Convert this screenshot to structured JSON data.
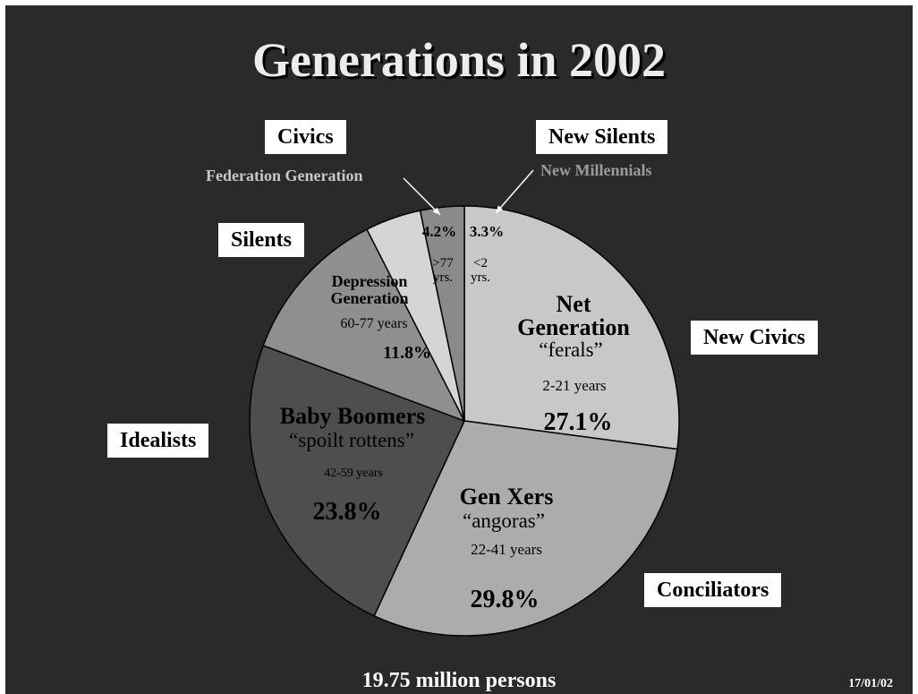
{
  "title": "Generations in 2002",
  "footer": "19.75 million persons",
  "date": "17/01/02",
  "labels": {
    "civics": "Civics",
    "federation_generation": "Federation Generation",
    "new_silents": "New Silents",
    "new_millennials": "New Millennials",
    "silents": "Silents",
    "new_civics": "New Civics",
    "idealists": "Idealists",
    "conciliators": "Conciliators"
  },
  "colors": {
    "background": "#2a2a2a",
    "slice_net_generation": "#c8c8c8",
    "slice_gen_xers": "#acacac",
    "slice_baby_boomers": "#4e4e4e",
    "slice_depression": "#8f8f8f",
    "slice_federation": "#d5d5d5",
    "slice_new_millennials": "#8a8a8a"
  },
  "chart_data": {
    "type": "pie",
    "title": "Generations in 2002",
    "slices": [
      {
        "name": "Net Generation",
        "nickname": "“ferals”",
        "ages": "2-21 years",
        "value": 27.1,
        "value_label": "27.1%"
      },
      {
        "name": "Gen Xers",
        "nickname": "“angoras”",
        "ages": "22-41 years",
        "value": 29.8,
        "value_label": "29.8%"
      },
      {
        "name": "Baby Boomers",
        "nickname": "“spoilt rottens”",
        "ages": "42-59 years",
        "value": 23.8,
        "value_label": "23.8%"
      },
      {
        "name": "Depression Generation",
        "nickname": "",
        "ages": "60-77 years",
        "value": 11.8,
        "value_label": "11.8%"
      },
      {
        "name": "",
        "nickname": "",
        "ages": ">77 yrs.",
        "value": 4.2,
        "value_label": "4.2%"
      },
      {
        "name": "",
        "nickname": "",
        "ages": "<2 yrs.",
        "value": 3.3,
        "value_label": "3.3%"
      }
    ]
  }
}
